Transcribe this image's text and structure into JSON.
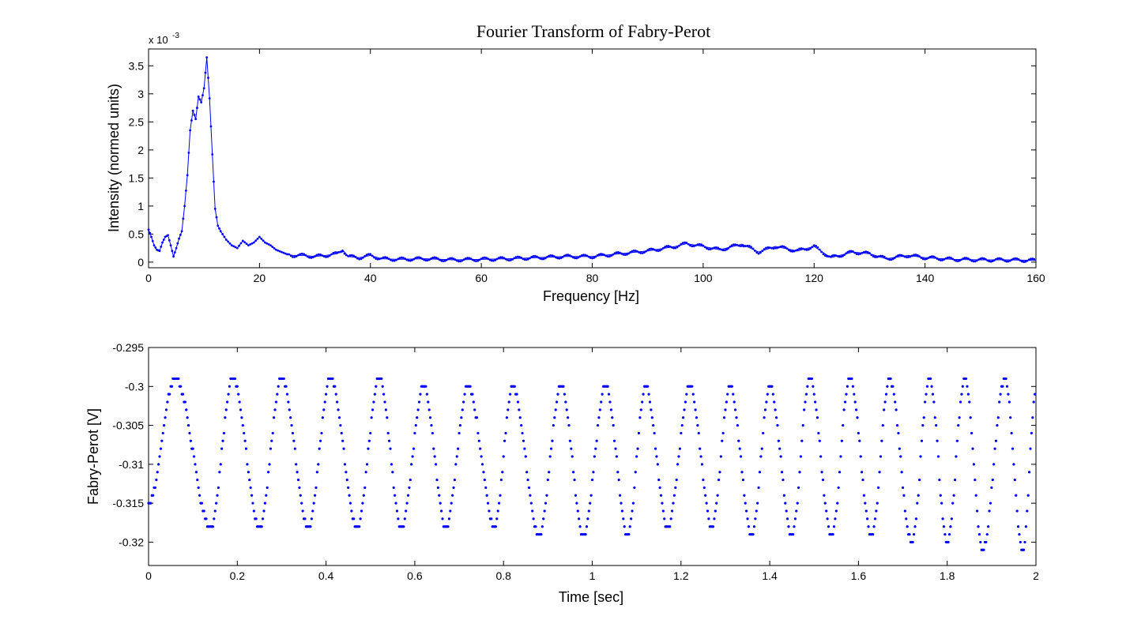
{
  "chart_data": [
    {
      "type": "line",
      "title": "Fourier Transform of Fabry-Perot",
      "xlabel": "Frequency [Hz]",
      "ylabel": "Intensity (normed units)",
      "y_exponent_label": "x 10",
      "y_exponent_power": "-3",
      "xlim": [
        0,
        160
      ],
      "ylim": [
        -0.1,
        3.8
      ],
      "xticks": [
        "0",
        "20",
        "40",
        "60",
        "80",
        "100",
        "120",
        "140",
        "160"
      ],
      "yticks": [
        "0",
        "0.5",
        "1",
        "1.5",
        "2",
        "2.5",
        "3",
        "3.5"
      ],
      "grid": false,
      "marker": "point",
      "color": "#0000ff",
      "series": [
        {
          "x": [
            0,
            0.5,
            1,
            1.5,
            2,
            2.5,
            3,
            3.5,
            4,
            4.5,
            5,
            5.5,
            6,
            6.5,
            7,
            7.5,
            8,
            8.5,
            9,
            9.5,
            10,
            10.5,
            11,
            11.5,
            12,
            12.5,
            13,
            14,
            15,
            16,
            17,
            18,
            19,
            20,
            21,
            22,
            23,
            24,
            25,
            26,
            28,
            30,
            32,
            34,
            35,
            36,
            38,
            40,
            42,
            45,
            50,
            55,
            60,
            65,
            70,
            75,
            80,
            85,
            90,
            95,
            97,
            100,
            103,
            107,
            110,
            113,
            117,
            120,
            123,
            127,
            130,
            133,
            137,
            140,
            145,
            150,
            155,
            160
          ],
          "y": [
            0.58,
            0.45,
            0.3,
            0.22,
            0.2,
            0.35,
            0.45,
            0.48,
            0.3,
            0.1,
            0.25,
            0.42,
            0.55,
            1.0,
            1.55,
            2.35,
            2.7,
            2.55,
            2.95,
            2.85,
            3.1,
            3.65,
            2.92,
            1.92,
            0.95,
            0.65,
            0.55,
            0.4,
            0.3,
            0.25,
            0.38,
            0.3,
            0.35,
            0.45,
            0.35,
            0.3,
            0.22,
            0.18,
            0.14,
            0.12,
            0.12,
            0.1,
            0.12,
            0.15,
            0.22,
            0.1,
            0.08,
            0.12,
            0.06,
            0.05,
            0.06,
            0.04,
            0.05,
            0.06,
            0.08,
            0.1,
            0.1,
            0.15,
            0.2,
            0.28,
            0.33,
            0.28,
            0.22,
            0.32,
            0.18,
            0.28,
            0.2,
            0.28,
            0.08,
            0.18,
            0.15,
            0.06,
            0.12,
            0.08,
            0.05,
            0.04,
            0.04,
            0.03
          ]
        }
      ]
    },
    {
      "type": "scatter",
      "title": "",
      "xlabel": "Time [sec]",
      "ylabel": "Fabry-Perot [V]",
      "xlim": [
        0,
        2
      ],
      "ylim": [
        -0.323,
        -0.295
      ],
      "xticks": [
        "0",
        "0.2",
        "0.4",
        "0.6",
        "0.8",
        "1",
        "1.2",
        "1.4",
        "1.6",
        "1.8",
        "2"
      ],
      "yticks": [
        "-0.295",
        "-0.3",
        "-0.305",
        "-0.31",
        "-0.315",
        "-0.32"
      ],
      "grid": false,
      "marker": "point",
      "color": "#0000ff",
      "peak_times": [
        0.06,
        0.19,
        0.3,
        0.41,
        0.52,
        0.62,
        0.72,
        0.82,
        0.93,
        1.03,
        1.12,
        1.22,
        1.31,
        1.4,
        1.49,
        1.58,
        1.67,
        1.76,
        1.84,
        1.93,
        2.0
      ],
      "trough_times": [
        0.0,
        0.14,
        0.25,
        0.36,
        0.47,
        0.57,
        0.67,
        0.78,
        0.88,
        0.98,
        1.08,
        1.17,
        1.27,
        1.36,
        1.45,
        1.54,
        1.63,
        1.72,
        1.8,
        1.88,
        1.97
      ],
      "peak_values": [
        -0.299,
        -0.299,
        -0.299,
        -0.299,
        -0.299,
        -0.3,
        -0.3,
        -0.3,
        -0.3,
        -0.3,
        -0.3,
        -0.3,
        -0.3,
        -0.3,
        -0.299,
        -0.299,
        -0.299,
        -0.299,
        -0.299,
        -0.299,
        -0.301
      ],
      "trough_values": [
        -0.315,
        -0.318,
        -0.318,
        -0.318,
        -0.318,
        -0.318,
        -0.318,
        -0.318,
        -0.319,
        -0.319,
        -0.319,
        -0.318,
        -0.318,
        -0.319,
        -0.319,
        -0.319,
        -0.319,
        -0.32,
        -0.32,
        -0.321,
        -0.321
      ]
    }
  ]
}
